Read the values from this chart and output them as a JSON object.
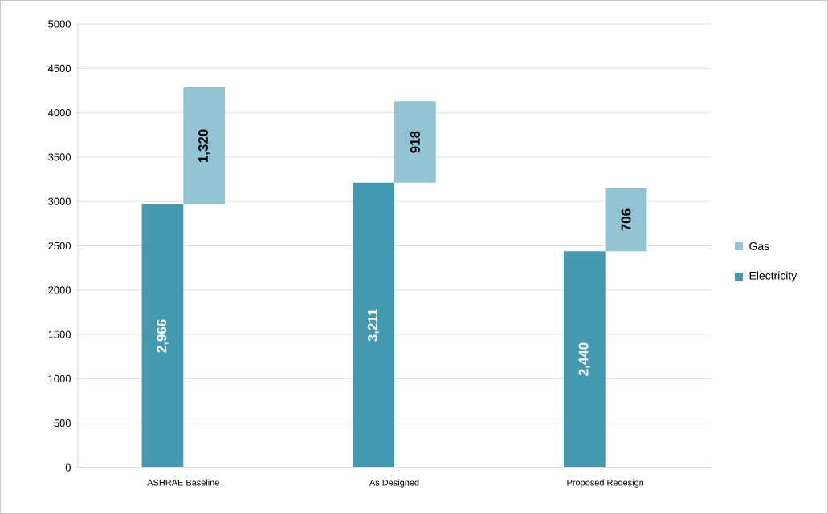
{
  "chart_data": {
    "type": "bar",
    "categories": [
      "ASHRAE Baseline",
      "As Designed",
      "Proposed Redesign"
    ],
    "series": [
      {
        "name": "Electricity",
        "color": "#4499b0",
        "values": [
          2966,
          3211,
          2440
        ],
        "value_labels": [
          "2,966",
          "3,211",
          "2,440"
        ]
      },
      {
        "name": "Gas",
        "color": "#93c4d4",
        "values": [
          1320,
          918,
          706
        ],
        "base": [
          2966,
          3211,
          2440
        ],
        "value_labels": [
          "1,320",
          "918",
          "706"
        ]
      }
    ],
    "ylim": [
      0,
      5000
    ],
    "yticks": [
      0,
      500,
      1000,
      1500,
      2000,
      2500,
      3000,
      3500,
      4000,
      4500,
      5000
    ],
    "grid": "y",
    "legend": "right"
  }
}
